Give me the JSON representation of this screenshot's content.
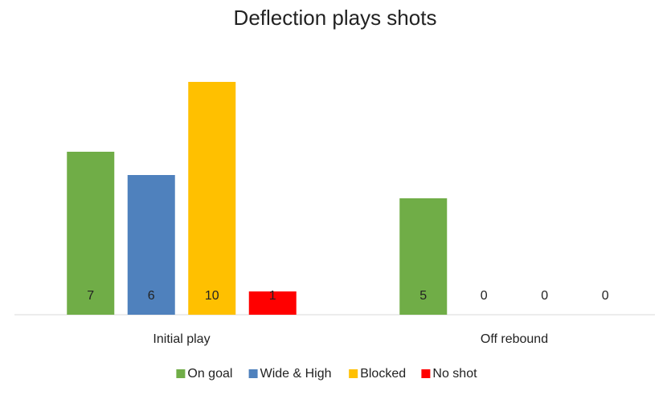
{
  "chart_data": {
    "type": "bar",
    "title": "Deflection plays shots",
    "categories": [
      "Initial play",
      "Off rebound"
    ],
    "series": [
      {
        "name": "On goal",
        "color": "#70ad47",
        "values": [
          7,
          5
        ]
      },
      {
        "name": "Wide & High",
        "color": "#4f81bd",
        "values": [
          6,
          0
        ]
      },
      {
        "name": "Blocked",
        "color": "#ffc000",
        "values": [
          10,
          0
        ]
      },
      {
        "name": "No shot",
        "color": "#ff0000",
        "values": [
          1,
          0
        ]
      }
    ],
    "ylim": [
      0,
      10
    ]
  }
}
